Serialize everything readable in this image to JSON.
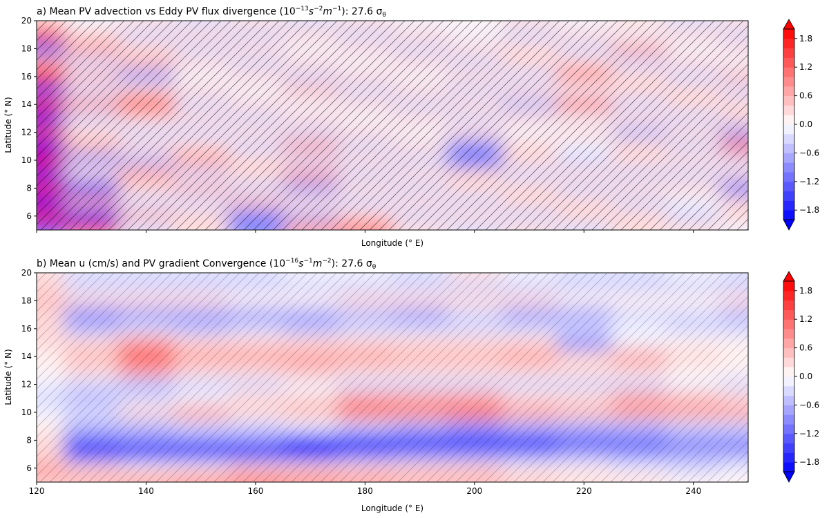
{
  "chart_data": [
    {
      "type": "heatmap",
      "title": "a) Mean PV advection vs Eddy PV flux divergence (10",
      "title_sup1": "−13",
      "title_mid1": "s",
      "title_sup2": "−2",
      "title_mid2": "m",
      "title_sup3": "−1",
      "title_end": "): 27.6 σ",
      "title_sub": "θ",
      "xlabel": "Longitude (° E)",
      "ylabel": "Latitude (° N)",
      "xlim": [
        120,
        250
      ],
      "ylim": [
        5,
        20
      ],
      "xticks": [
        120,
        140,
        160,
        180,
        200,
        220,
        240
      ],
      "xticklabels_shown": false,
      "yticks": [
        6,
        8,
        10,
        12,
        14,
        16,
        18,
        20
      ],
      "lon": [
        120,
        130,
        140,
        150,
        160,
        170,
        180,
        190,
        200,
        210,
        220,
        230,
        240,
        250
      ],
      "lat": [
        20,
        19,
        18,
        17,
        16,
        15,
        14,
        13,
        12,
        11,
        10,
        9,
        8,
        7,
        6,
        5
      ],
      "values": [
        [
          0.4,
          -0.2,
          0.3,
          -0.3,
          0.2,
          -0.4,
          0.3,
          -0.2,
          0.1,
          0.3,
          -0.2,
          0.4,
          -0.3,
          0.2
        ],
        [
          1.5,
          0.3,
          -0.4,
          0.4,
          -0.3,
          0.2,
          -0.3,
          0.4,
          -0.2,
          -0.3,
          0.3,
          -0.2,
          0.3,
          -0.3
        ],
        [
          -1.2,
          0.6,
          0.2,
          -0.3,
          0.4,
          -0.2,
          0.3,
          -0.4,
          0.2,
          0.2,
          -0.4,
          0.7,
          -0.2,
          0.3
        ],
        [
          0.8,
          -0.3,
          0.5,
          0.2,
          -0.4,
          0.3,
          -0.2,
          0.3,
          -0.3,
          0.4,
          0.2,
          -0.3,
          0.4,
          -0.2
        ],
        [
          1.6,
          0.5,
          -0.6,
          -0.2,
          0.3,
          -0.3,
          0.4,
          -0.2,
          0.3,
          -0.3,
          0.9,
          0.3,
          -0.3,
          0.5
        ],
        [
          -1.4,
          -0.4,
          0.3,
          0.4,
          -0.2,
          0.5,
          -0.3,
          0.2,
          -0.4,
          0.3,
          -0.2,
          0.4,
          0.2,
          -0.4
        ],
        [
          1.8,
          0.6,
          1.2,
          -0.3,
          0.3,
          -0.2,
          0.4,
          -0.3,
          0.2,
          -0.5,
          1.0,
          -0.3,
          0.4,
          0.3
        ],
        [
          -1.6,
          -0.3,
          0.4,
          0.3,
          -0.4,
          0.3,
          -0.2,
          0.4,
          -0.3,
          0.4,
          -0.2,
          0.3,
          -0.4,
          0.2
        ],
        [
          1.5,
          0.4,
          -0.3,
          -0.4,
          0.2,
          -0.3,
          0.3,
          -0.2,
          0.4,
          -0.2,
          0.3,
          -0.5,
          0.3,
          -0.6
        ],
        [
          -1.8,
          0.5,
          0.3,
          0.2,
          -0.3,
          0.6,
          -0.4,
          0.3,
          -1.0,
          0.3,
          -0.2,
          0.3,
          -0.3,
          1.0
        ],
        [
          1.9,
          -0.6,
          -0.5,
          0.8,
          0.3,
          -0.4,
          0.3,
          -0.3,
          -1.2,
          0.4,
          -0.3,
          0.2,
          0.4,
          -0.4
        ],
        [
          -1.7,
          0.4,
          0.6,
          -0.4,
          0.4,
          0.8,
          -0.3,
          0.4,
          0.3,
          -0.3,
          0.4,
          -0.4,
          -0.3,
          0.3
        ],
        [
          1.6,
          -1.5,
          0.3,
          0.5,
          -0.3,
          -0.6,
          0.4,
          -0.3,
          0.2,
          0.3,
          -0.3,
          0.3,
          0.4,
          -1.2
        ],
        [
          -1.8,
          0.8,
          -0.4,
          -0.3,
          0.5,
          0.4,
          -0.3,
          0.3,
          -0.4,
          0.2,
          0.4,
          -0.3,
          -0.2,
          0.3
        ],
        [
          1.7,
          -1.6,
          0.5,
          0.3,
          -0.8,
          -0.5,
          0.4,
          -0.3,
          0.3,
          -0.4,
          0.3,
          0.4,
          -0.3,
          0.2
        ],
        [
          -1.5,
          1.2,
          -0.3,
          0.4,
          -1.2,
          0.9,
          1.2,
          0.3,
          -0.3,
          0.4,
          -0.3,
          0.2,
          0.3,
          -0.2
        ]
      ],
      "colorbar": {
        "levels_min": -2.0,
        "levels_max": 2.0,
        "levels_step": 0.2,
        "extend": "both",
        "ticks": [
          1.8,
          1.2,
          0.6,
          0.0,
          -0.6,
          -1.2,
          -1.8
        ],
        "ticklabels": [
          "1.8",
          "1.2",
          "0.6",
          "0.0",
          "−0.6",
          "−1.2",
          "−1.8"
        ]
      }
    },
    {
      "type": "heatmap",
      "title": "b) Mean u  (cm/s) and PV gradient Convergence (10",
      "title_sup1": "−16",
      "title_mid1": "s",
      "title_sup2": "−1",
      "title_mid2": "m",
      "title_sup3": "−2",
      "title_end": "): 27.6 σ",
      "title_sub": "θ",
      "xlabel": "Longitude (° E)",
      "ylabel": "Latitude (° N)",
      "xlim": [
        120,
        250
      ],
      "ylim": [
        5,
        20
      ],
      "xticks": [
        120,
        140,
        160,
        180,
        200,
        220,
        240
      ],
      "xticklabels_shown": true,
      "xticklabels": [
        "120",
        "140",
        "160",
        "180",
        "200",
        "220",
        "240"
      ],
      "yticks": [
        6,
        8,
        10,
        12,
        14,
        16,
        18,
        20
      ],
      "lon": [
        120,
        130,
        140,
        150,
        160,
        170,
        180,
        190,
        200,
        210,
        220,
        230,
        240,
        250
      ],
      "lat": [
        20,
        19,
        18,
        17,
        16,
        15,
        14,
        13,
        12,
        11,
        10,
        9,
        8,
        7,
        6,
        5
      ],
      "values": [
        [
          0.3,
          -0.3,
          -0.3,
          -0.4,
          -0.3,
          -0.2,
          -0.2,
          -0.3,
          0.3,
          -0.2,
          -0.3,
          -0.3,
          -0.2,
          -0.3
        ],
        [
          0.2,
          -0.4,
          -0.3,
          -0.3,
          -0.4,
          -0.3,
          -0.3,
          -0.3,
          -0.3,
          -0.4,
          -0.3,
          -0.4,
          -0.3,
          -0.3
        ],
        [
          0.5,
          0.3,
          0.2,
          0.2,
          0.1,
          0.1,
          0.2,
          0.2,
          0.3,
          0.2,
          0.1,
          0.0,
          0.1,
          0.2
        ],
        [
          0.4,
          -0.8,
          -0.7,
          -0.6,
          -0.6,
          -0.7,
          -0.5,
          -0.7,
          -0.4,
          -0.6,
          -0.6,
          -0.3,
          -0.4,
          -0.5
        ],
        [
          0.3,
          -0.5,
          -0.4,
          -0.5,
          -0.4,
          -0.5,
          -0.3,
          -0.4,
          -0.3,
          -0.3,
          -0.4,
          -0.2,
          -0.3,
          -0.3
        ],
        [
          0.2,
          0.3,
          0.6,
          0.4,
          0.3,
          0.4,
          0.4,
          0.3,
          0.3,
          0.2,
          -0.9,
          -0.2,
          0.1,
          0.0
        ],
        [
          0.1,
          0.5,
          1.2,
          0.6,
          0.6,
          0.7,
          0.6,
          0.5,
          0.5,
          0.6,
          0.4,
          0.6,
          0.2,
          0.1
        ],
        [
          0.0,
          0.2,
          0.8,
          0.4,
          0.4,
          0.5,
          0.3,
          0.3,
          0.3,
          0.4,
          0.2,
          0.3,
          0.1,
          0.0
        ],
        [
          -0.2,
          -0.4,
          -0.5,
          -0.4,
          -0.3,
          -0.2,
          -0.3,
          -0.3,
          -0.3,
          -0.3,
          -0.3,
          -0.3,
          -0.2,
          -0.4
        ],
        [
          -0.3,
          -0.5,
          -0.3,
          -0.2,
          0.2,
          0.4,
          0.8,
          0.6,
          0.6,
          0.4,
          0.2,
          0.6,
          0.5,
          0.4
        ],
        [
          -0.2,
          -0.3,
          0.4,
          0.6,
          0.4,
          0.5,
          1.0,
          0.9,
          1.0,
          0.6,
          0.5,
          0.7,
          0.6,
          0.6
        ],
        [
          0.1,
          -0.5,
          -0.5,
          -0.4,
          -0.3,
          -0.2,
          -0.4,
          -0.5,
          -0.6,
          -0.5,
          -0.5,
          -0.5,
          -0.4,
          -0.4
        ],
        [
          0.3,
          -1.2,
          -0.8,
          -0.8,
          -0.9,
          -1.5,
          -2.2,
          -2.4,
          -2.4,
          -2.0,
          -1.4,
          -1.2,
          -0.9,
          -0.8
        ],
        [
          0.4,
          -1.8,
          -2.0,
          -2.0,
          -1.8,
          -1.8,
          -1.2,
          -1.0,
          -0.9,
          -0.8,
          -0.7,
          -0.8,
          -0.7,
          -0.6
        ],
        [
          0.6,
          0.3,
          0.1,
          0.1,
          0.2,
          0.4,
          0.3,
          0.2,
          0.2,
          0.1,
          0.0,
          -0.1,
          -0.3,
          -0.2
        ],
        [
          0.5,
          0.8,
          0.9,
          1.0,
          1.2,
          1.1,
          0.9,
          0.6,
          0.6,
          0.5,
          0.3,
          0.2,
          0.1,
          0.0
        ]
      ],
      "colorbar": {
        "levels_min": -2.0,
        "levels_max": 2.0,
        "levels_step": 0.2,
        "extend": "both",
        "ticks": [
          1.8,
          1.2,
          0.6,
          0.0,
          -0.6,
          -1.2,
          -1.8
        ],
        "ticklabels": [
          "1.8",
          "1.2",
          "0.6",
          "0.0",
          "−0.6",
          "−1.2",
          "−1.8"
        ]
      }
    }
  ]
}
